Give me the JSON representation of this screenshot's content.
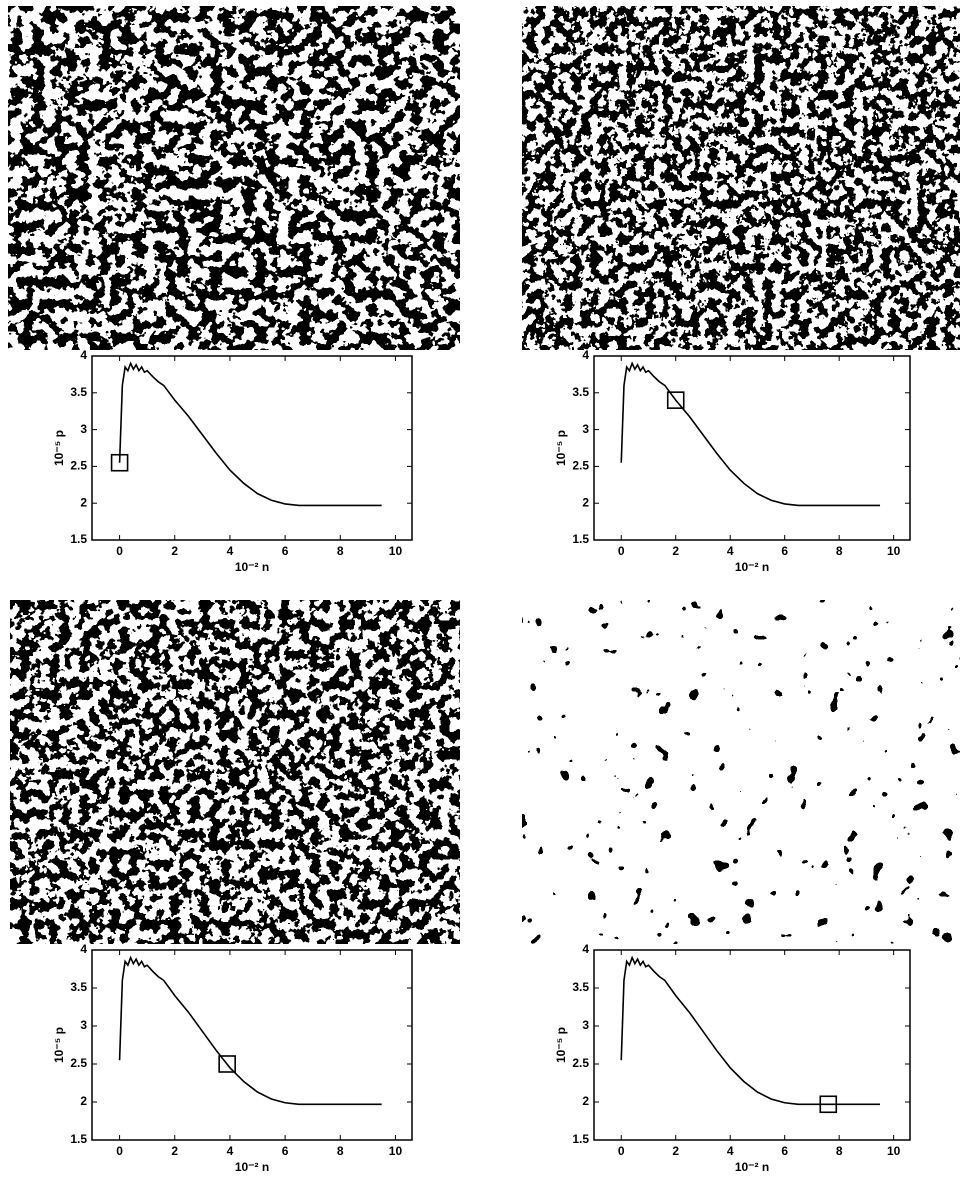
{
  "chart_data": [
    {
      "type": "line",
      "xlabel": "10⁻² n",
      "ylabel": "10⁻⁵ p",
      "xlim": [
        -1,
        10.6
      ],
      "ylim": [
        1.5,
        4
      ],
      "xticks": [
        0,
        2,
        4,
        6,
        8,
        10
      ],
      "yticks": [
        1.5,
        2,
        2.5,
        3,
        3.5,
        4
      ],
      "color": "#000000",
      "x": [
        0,
        0.1,
        0.2,
        0.3,
        0.4,
        0.5,
        0.6,
        0.7,
        0.8,
        0.9,
        1.0,
        1.2,
        1.4,
        1.6,
        1.8,
        2.0,
        2.5,
        3,
        3.5,
        4,
        4.5,
        5,
        5.5,
        6,
        6.5,
        7,
        8,
        9,
        9.5
      ],
      "values": [
        2.55,
        3.6,
        3.85,
        3.8,
        3.9,
        3.82,
        3.88,
        3.8,
        3.85,
        3.78,
        3.8,
        3.72,
        3.65,
        3.6,
        3.5,
        3.4,
        3.18,
        2.93,
        2.68,
        2.45,
        2.27,
        2.13,
        2.04,
        1.99,
        1.97,
        1.97,
        1.97,
        1.97,
        1.97
      ],
      "marker": {
        "x": 0,
        "y": 2.55
      }
    },
    {
      "type": "line",
      "xlabel": "10⁻² n",
      "ylabel": "10⁻⁵ p",
      "xlim": [
        -1,
        10.6
      ],
      "ylim": [
        1.5,
        4
      ],
      "xticks": [
        0,
        2,
        4,
        6,
        8,
        10
      ],
      "yticks": [
        1.5,
        2,
        2.5,
        3,
        3.5,
        4
      ],
      "color": "#000000",
      "x": [
        0,
        0.1,
        0.2,
        0.3,
        0.4,
        0.5,
        0.6,
        0.7,
        0.8,
        0.9,
        1.0,
        1.2,
        1.4,
        1.6,
        1.8,
        2.0,
        2.5,
        3,
        3.5,
        4,
        4.5,
        5,
        5.5,
        6,
        6.5,
        7,
        8,
        9,
        9.5
      ],
      "values": [
        2.55,
        3.6,
        3.85,
        3.8,
        3.9,
        3.82,
        3.88,
        3.8,
        3.85,
        3.78,
        3.8,
        3.72,
        3.65,
        3.6,
        3.5,
        3.4,
        3.18,
        2.93,
        2.68,
        2.45,
        2.27,
        2.13,
        2.04,
        1.99,
        1.97,
        1.97,
        1.97,
        1.97,
        1.97
      ],
      "marker": {
        "x": 2,
        "y": 3.4
      }
    },
    {
      "type": "line",
      "xlabel": "10⁻² n",
      "ylabel": "10⁻⁵ p",
      "xlim": [
        -1,
        10.6
      ],
      "ylim": [
        1.5,
        4
      ],
      "xticks": [
        0,
        2,
        4,
        6,
        8,
        10
      ],
      "yticks": [
        1.5,
        2,
        2.5,
        3,
        3.5,
        4
      ],
      "color": "#000000",
      "x": [
        0,
        0.1,
        0.2,
        0.3,
        0.4,
        0.5,
        0.6,
        0.7,
        0.8,
        0.9,
        1.0,
        1.2,
        1.4,
        1.6,
        1.8,
        2.0,
        2.5,
        3,
        3.5,
        4,
        4.5,
        5,
        5.5,
        6,
        6.5,
        7,
        8,
        9,
        9.5
      ],
      "values": [
        2.55,
        3.6,
        3.85,
        3.8,
        3.9,
        3.82,
        3.88,
        3.8,
        3.85,
        3.78,
        3.8,
        3.72,
        3.65,
        3.6,
        3.5,
        3.4,
        3.18,
        2.93,
        2.68,
        2.45,
        2.27,
        2.13,
        2.04,
        1.99,
        1.97,
        1.97,
        1.97,
        1.97,
        1.97
      ],
      "marker": {
        "x": 3.9,
        "y": 2.5
      }
    },
    {
      "type": "line",
      "xlabel": "10⁻² n",
      "ylabel": "10⁻⁵ p",
      "xlim": [
        -1,
        10.6
      ],
      "ylim": [
        1.5,
        4
      ],
      "xticks": [
        0,
        2,
        4,
        6,
        8,
        10
      ],
      "yticks": [
        1.5,
        2,
        2.5,
        3,
        3.5,
        4
      ],
      "color": "#000000",
      "x": [
        0,
        0.1,
        0.2,
        0.3,
        0.4,
        0.5,
        0.6,
        0.7,
        0.8,
        0.9,
        1.0,
        1.2,
        1.4,
        1.6,
        1.8,
        2.0,
        2.5,
        3,
        3.5,
        4,
        4.5,
        5,
        5.5,
        6,
        6.5,
        7,
        8,
        9,
        9.5
      ],
      "values": [
        2.55,
        3.6,
        3.85,
        3.8,
        3.9,
        3.82,
        3.88,
        3.8,
        3.85,
        3.78,
        3.8,
        3.72,
        3.65,
        3.6,
        3.5,
        3.4,
        3.18,
        2.93,
        2.68,
        2.45,
        2.27,
        2.13,
        2.04,
        1.99,
        1.97,
        1.97,
        1.97,
        1.97,
        1.97
      ],
      "marker": {
        "x": 7.6,
        "y": 1.97
      }
    }
  ]
}
